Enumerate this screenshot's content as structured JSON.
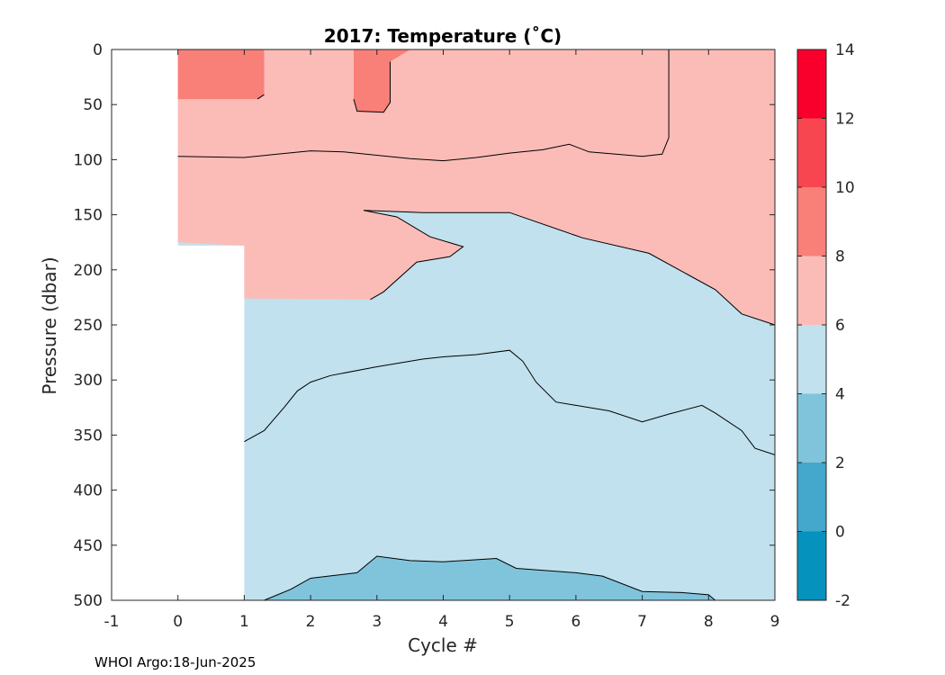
{
  "chart_data": {
    "type": "contour",
    "title": "2017:  Temperature (˚C)",
    "xlabel": "Cycle #",
    "ylabel": "Pressure (dbar)",
    "xlim": [
      -1,
      9
    ],
    "ylim": [
      0,
      500
    ],
    "y_reversed": true,
    "x_ticks": [
      "-1",
      "0",
      "1",
      "2",
      "3",
      "4",
      "5",
      "6",
      "7",
      "8",
      "9"
    ],
    "y_ticks": [
      "0",
      "50",
      "100",
      "150",
      "200",
      "250",
      "300",
      "350",
      "400",
      "450",
      "500"
    ],
    "colorbar": {
      "ticks": [
        "-2",
        "0",
        "2",
        "4",
        "6",
        "8",
        "10",
        "12",
        "14"
      ],
      "bands": [
        {
          "from": -2,
          "to": 0,
          "color": "#0592bd"
        },
        {
          "from": 0,
          "to": 2,
          "color": "#43a8cc"
        },
        {
          "from": 2,
          "to": 4,
          "color": "#80c4dc"
        },
        {
          "from": 4,
          "to": 6,
          "color": "#c0e1ed"
        },
        {
          "from": 6,
          "to": 8,
          "color": "#fbbcb7"
        },
        {
          "from": 8,
          "to": 10,
          "color": "#f88078"
        },
        {
          "from": 10,
          "to": 12,
          "color": "#f84651"
        },
        {
          "from": 12,
          "to": 14,
          "color": "#f8002b"
        }
      ]
    },
    "data_coverage": [
      {
        "x": 0,
        "pmax": 178
      },
      {
        "x": 1,
        "pmax": 500
      },
      {
        "x": 9,
        "pmax": 500
      }
    ],
    "regions": [
      {
        "band": "6-8",
        "outline": [
          [
            0,
            0
          ],
          [
            9,
            0
          ],
          [
            9,
            250
          ],
          [
            8.5,
            240
          ],
          [
            8.1,
            218
          ],
          [
            7.1,
            185
          ],
          [
            6.1,
            171
          ],
          [
            5,
            148
          ],
          [
            3.7,
            148
          ],
          [
            2.8,
            146
          ],
          [
            3.3,
            152
          ],
          [
            3.8,
            170
          ],
          [
            4.3,
            179
          ],
          [
            4.1,
            188
          ],
          [
            3.6,
            193
          ],
          [
            3.1,
            220
          ],
          [
            2.9,
            227
          ],
          [
            1,
            226
          ],
          [
            1,
            178
          ],
          [
            0,
            175
          ]
        ]
      },
      {
        "band": "8-10",
        "outline": [
          [
            0,
            0
          ],
          [
            1.3,
            0
          ],
          [
            1.3,
            41
          ],
          [
            1.2,
            45
          ],
          [
            0,
            45
          ]
        ]
      },
      {
        "band": "8-10",
        "outline": [
          [
            2.65,
            0
          ],
          [
            3.5,
            0
          ],
          [
            3.2,
            11
          ],
          [
            3.2,
            48
          ],
          [
            3.1,
            57
          ],
          [
            2.7,
            56
          ],
          [
            2.65,
            45
          ]
        ]
      },
      {
        "band": "2-4",
        "outline": [
          [
            1.3,
            500
          ],
          [
            1.7,
            490
          ],
          [
            2.0,
            480
          ],
          [
            2.7,
            475
          ],
          [
            3.0,
            460
          ],
          [
            3.5,
            464
          ],
          [
            4.0,
            465
          ],
          [
            4.8,
            462
          ],
          [
            5.1,
            471
          ],
          [
            6.0,
            475
          ],
          [
            6.4,
            478
          ],
          [
            7.0,
            492
          ],
          [
            7.6,
            493
          ],
          [
            8.0,
            495
          ],
          [
            8.1,
            500
          ]
        ]
      }
    ],
    "isotherms": [
      {
        "level": 8,
        "points": [
          [
            0,
            97
          ],
          [
            1.0,
            98
          ],
          [
            1.5,
            95
          ],
          [
            2.0,
            92
          ],
          [
            2.5,
            93
          ],
          [
            3.0,
            96
          ],
          [
            3.5,
            99
          ],
          [
            4.0,
            101
          ],
          [
            4.5,
            98
          ],
          [
            5.0,
            94
          ],
          [
            5.5,
            91
          ],
          [
            5.9,
            86
          ],
          [
            6.2,
            93
          ],
          [
            7.0,
            97
          ],
          [
            7.3,
            95
          ],
          [
            7.4,
            80
          ],
          [
            7.4,
            0
          ]
        ]
      },
      {
        "level": 4,
        "points": [
          [
            1.0,
            356
          ],
          [
            1.3,
            346
          ],
          [
            1.6,
            325
          ],
          [
            1.8,
            310
          ],
          [
            2.0,
            302
          ],
          [
            2.3,
            296
          ],
          [
            3.0,
            288
          ],
          [
            3.7,
            281
          ],
          [
            4.0,
            279
          ],
          [
            4.5,
            277
          ],
          [
            5.0,
            273
          ],
          [
            5.2,
            283
          ],
          [
            5.4,
            302
          ],
          [
            5.7,
            320
          ],
          [
            6.0,
            323
          ],
          [
            6.5,
            328
          ],
          [
            7.0,
            338
          ],
          [
            7.4,
            331
          ],
          [
            7.9,
            323
          ],
          [
            8.1,
            330
          ],
          [
            8.5,
            346
          ],
          [
            8.7,
            362
          ],
          [
            9.0,
            368
          ]
        ]
      }
    ],
    "credit": "WHOI Argo:18-Jun-2025"
  }
}
